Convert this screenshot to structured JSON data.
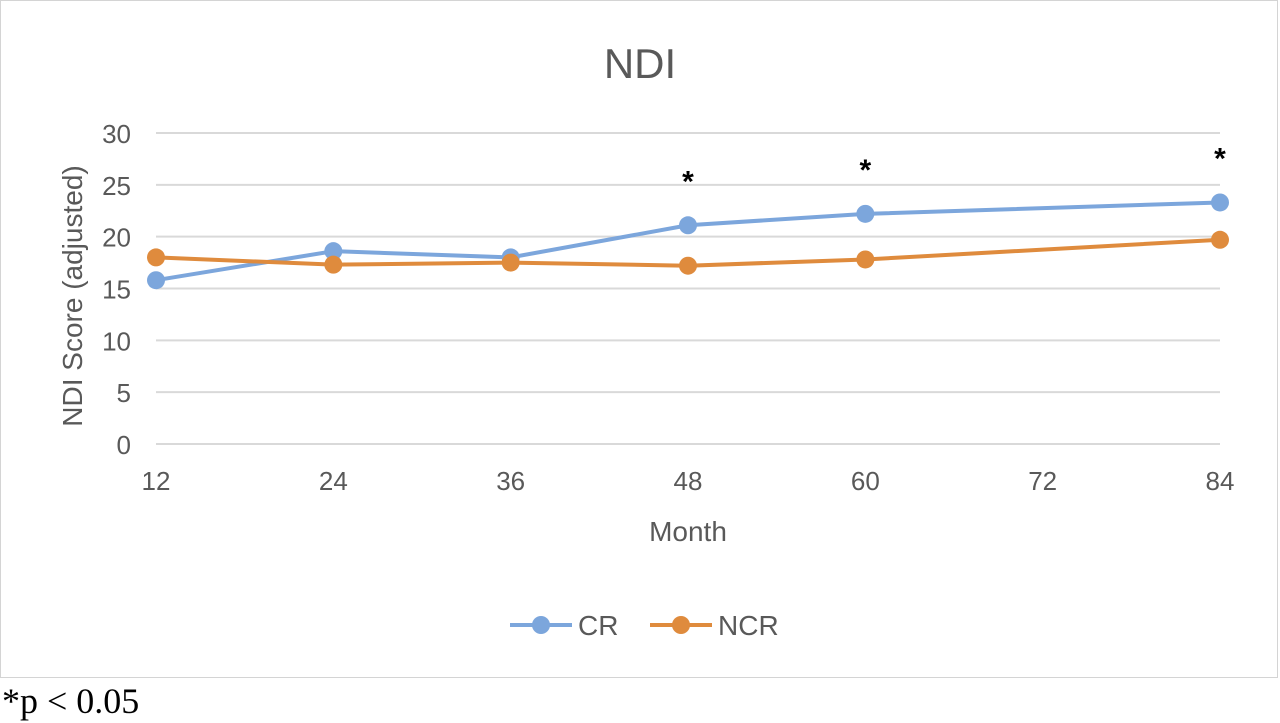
{
  "chart_data": {
    "type": "line",
    "title": "NDI",
    "xlabel": "Month",
    "ylabel": "NDI Score (adjusted)",
    "categories": [
      "12",
      "24",
      "36",
      "48",
      "60",
      "72",
      "84"
    ],
    "yticks": [
      "0",
      "5",
      "10",
      "15",
      "20",
      "25",
      "30"
    ],
    "ylim": [
      0,
      30
    ],
    "grid": true,
    "legend_position": "bottom",
    "series": [
      {
        "name": "CR",
        "color": "#7ca6dc",
        "x": [
          12,
          24,
          36,
          48,
          60,
          84
        ],
        "values": [
          15.8,
          18.6,
          18.0,
          21.1,
          22.2,
          23.3
        ]
      },
      {
        "name": "NCR",
        "color": "#df8b3d",
        "x": [
          12,
          24,
          36,
          48,
          60,
          84
        ],
        "values": [
          18.0,
          17.3,
          17.5,
          17.2,
          17.8,
          19.7
        ]
      }
    ],
    "annotations": [
      {
        "text": "*",
        "x": 48
      },
      {
        "text": "*",
        "x": 60
      },
      {
        "text": "*",
        "x": 84
      }
    ]
  },
  "footnote": "*p < 0.05"
}
